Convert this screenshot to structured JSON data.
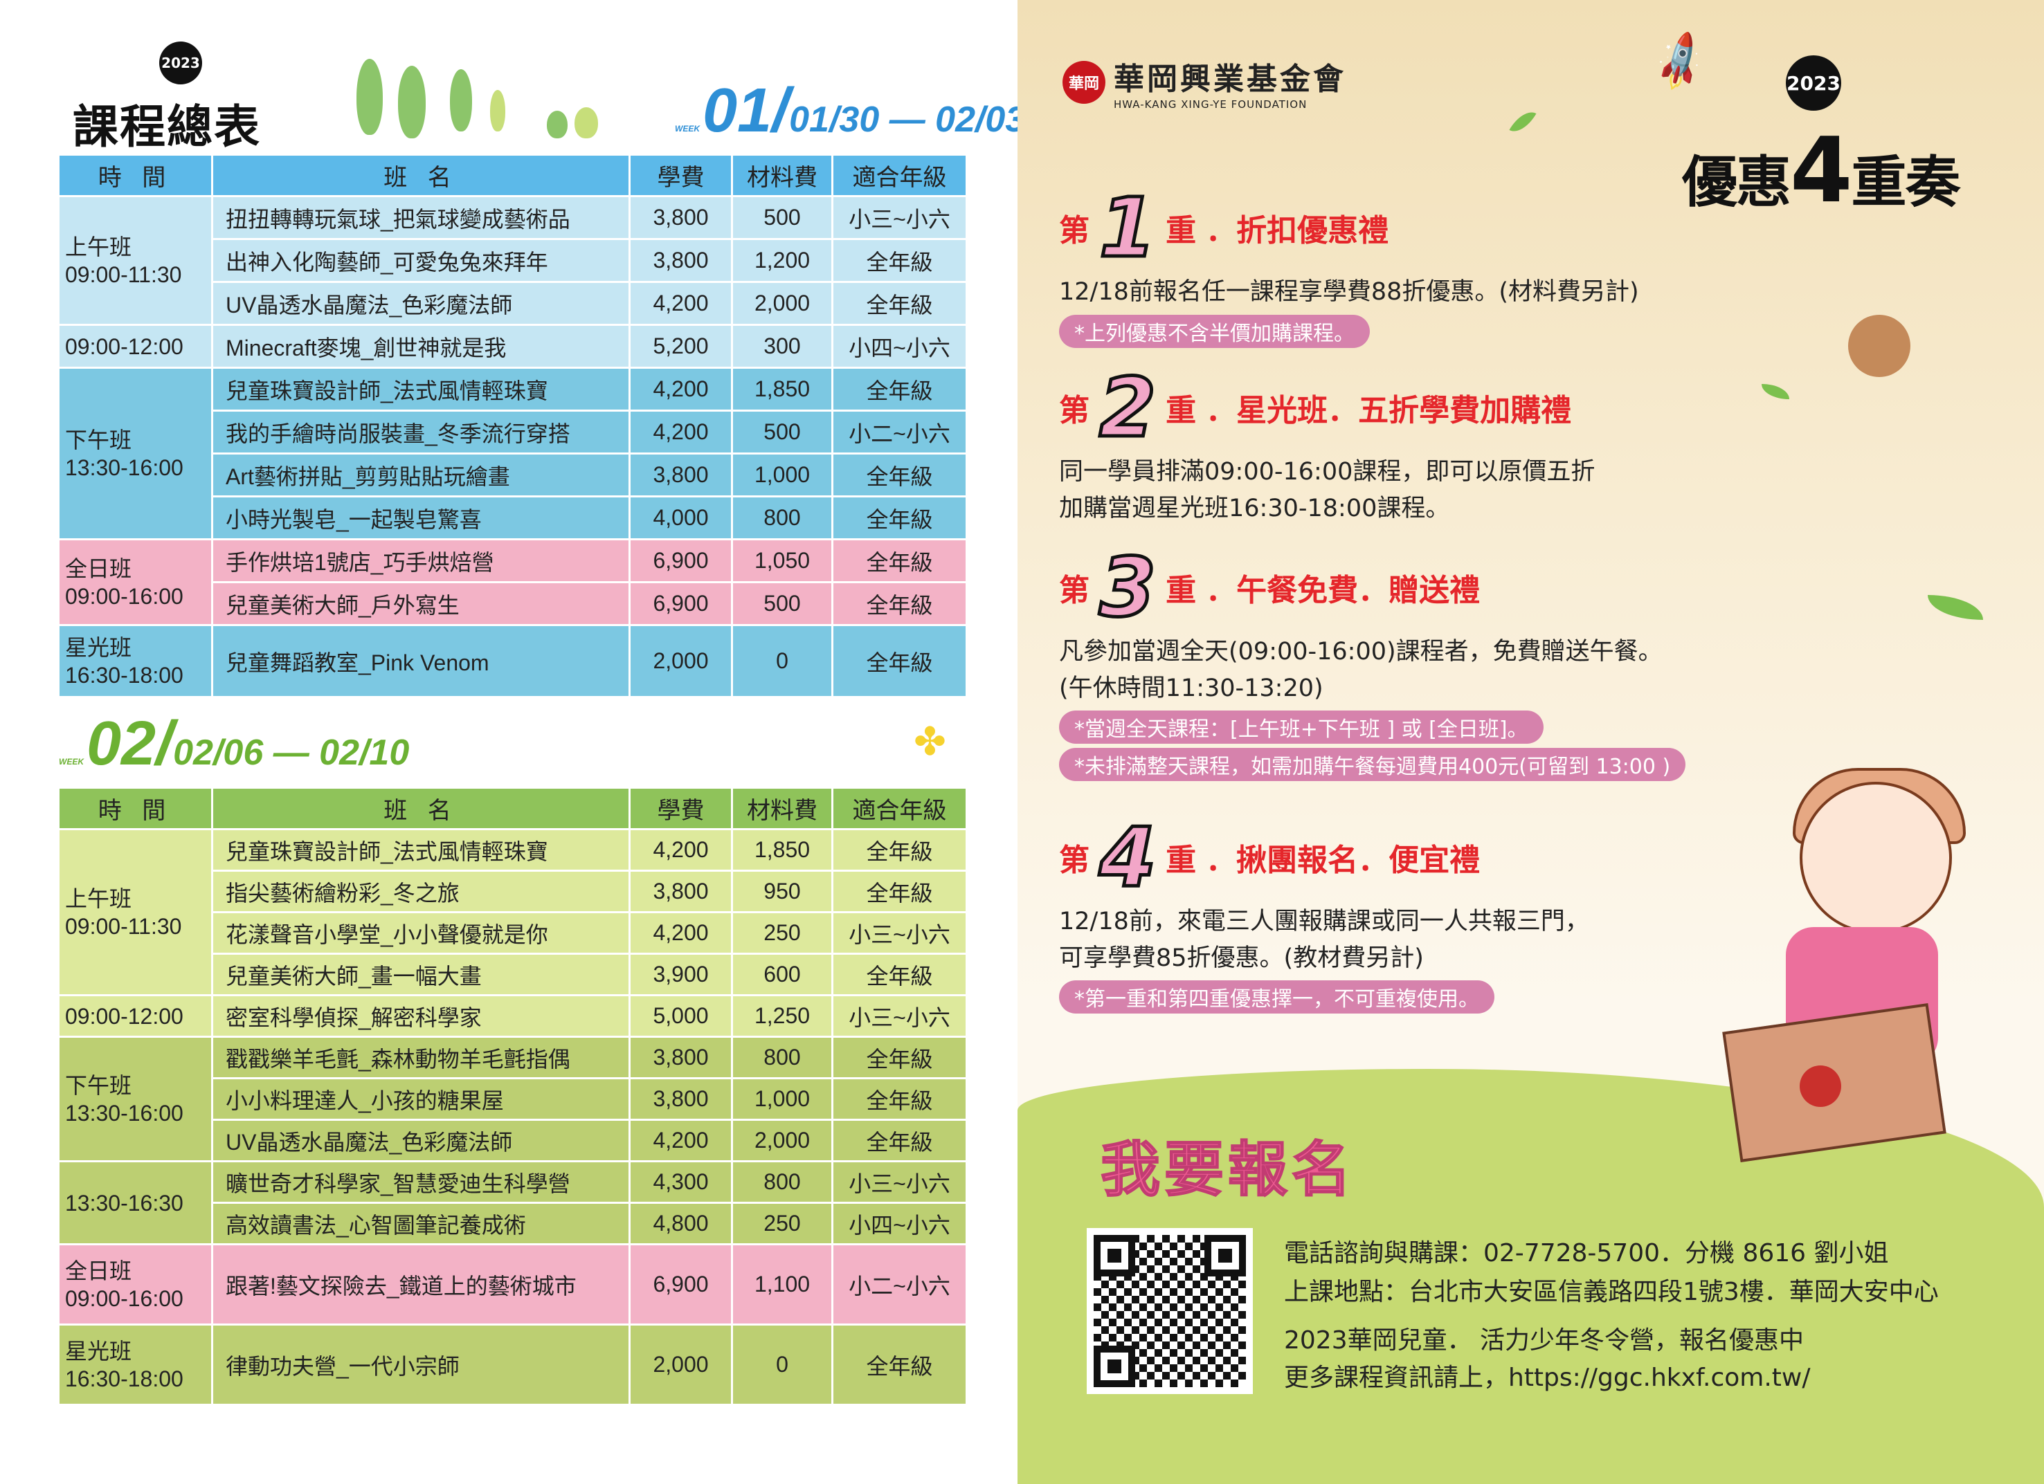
{
  "left": {
    "title": "課程總表",
    "badge": "2023",
    "week1": {
      "label": "01",
      "week_tag": "WEEK",
      "dates": "01/30 — 02/03"
    },
    "week2": {
      "label": "02",
      "week_tag": "WEEK",
      "dates": "02/06 — 02/10"
    },
    "headers": [
      "時 間",
      "班 名",
      "學費",
      "材料費",
      "適合年級"
    ],
    "table1": {
      "groups": [
        {
          "label": "上午班",
          "time": "09:00-11:30",
          "color": "#c5e6f3",
          "rows": [
            [
              "扭扭轉轉玩氣球_把氣球變成藝術品",
              "3,800",
              "500",
              "小三~小六"
            ],
            [
              "出神入化陶藝師_可愛兔兔來拜年",
              "3,800",
              "1,200",
              "全年級"
            ],
            [
              "UV晶透水晶魔法_色彩魔法師",
              "4,200",
              "2,000",
              "全年級"
            ]
          ]
        },
        {
          "label": "",
          "time": "09:00-12:00",
          "color": "#c5e6f3",
          "rows": [
            [
              "Minecraft麥塊_創世神就是我",
              "5,200",
              "300",
              "小四~小六"
            ]
          ]
        },
        {
          "label": "下午班",
          "time": "13:30-16:00",
          "color": "#7cc8e2",
          "rows": [
            [
              "兒童珠寶設計師_法式風情輕珠寶",
              "4,200",
              "1,850",
              "全年級"
            ],
            [
              "我的手繪時尚服裝畫_冬季流行穿搭",
              "4,200",
              "500",
              "小二~小六"
            ],
            [
              "Art藝術拼貼_剪剪貼貼玩繪畫",
              "3,800",
              "1,000",
              "全年級"
            ],
            [
              "小時光製皂_一起製皂驚喜",
              "4,000",
              "800",
              "全年級"
            ]
          ]
        },
        {
          "label": "全日班",
          "time": "09:00-16:00",
          "color": "#f3b2c6",
          "rows": [
            [
              "手作烘培1號店_巧手烘焙營",
              "6,900",
              "1,050",
              "全年級"
            ],
            [
              "兒童美術大師_戶外寫生",
              "6,900",
              "500",
              "全年級"
            ]
          ]
        },
        {
          "label": "星光班",
          "time": "16:30-18:00",
          "color": "#7cc8e2",
          "rows": [
            [
              "兒童舞蹈教室_Pink Venom",
              "2,000",
              "0",
              "全年級"
            ]
          ]
        }
      ]
    },
    "table2": {
      "groups": [
        {
          "label": "上午班",
          "time": "09:00-11:30",
          "color": "#dde99c",
          "rows": [
            [
              "兒童珠寶設計師_法式風情輕珠寶",
              "4,200",
              "1,850",
              "全年級"
            ],
            [
              "指尖藝術繪粉彩_冬之旅",
              "3,800",
              "950",
              "全年級"
            ],
            [
              "花漾聲音小學堂_小小聲優就是你",
              "4,200",
              "250",
              "小三~小六"
            ],
            [
              "兒童美術大師_畫一幅大畫",
              "3,900",
              "600",
              "全年級"
            ]
          ]
        },
        {
          "label": "",
          "time": "09:00-12:00",
          "color": "#dde99c",
          "rows": [
            [
              "密室科學偵探_解密科學家",
              "5,000",
              "1,250",
              "小三~小六"
            ]
          ]
        },
        {
          "label": "下午班",
          "time": "13:30-16:00",
          "color": "#bccf72",
          "rows": [
            [
              "戳戳樂羊毛氈_森林動物羊毛氈指偶",
              "3,800",
              "800",
              "全年級"
            ],
            [
              "小小料理達人_小孩的糖果屋",
              "3,800",
              "1,000",
              "全年級"
            ],
            [
              "UV晶透水晶魔法_色彩魔法師",
              "4,200",
              "2,000",
              "全年級"
            ]
          ]
        },
        {
          "label": "",
          "time": "13:30-16:30",
          "color": "#bccf72",
          "rows": [
            [
              "曠世奇才科學家_智慧愛迪生科學營",
              "4,300",
              "800",
              "小三~小六"
            ],
            [
              "高效讀書法_心智圖筆記養成術",
              "4,800",
              "250",
              "小四~小六"
            ]
          ]
        },
        {
          "label": "全日班",
          "time": "09:00-16:00",
          "color": "#f3b2c6",
          "rows": [
            [
              "跟著!藝文探險去_鐵道上的藝術城市",
              "6,900",
              "1,100",
              "小二~小六"
            ]
          ]
        },
        {
          "label": "星光班",
          "time": "16:30-18:00",
          "color": "#bccf72",
          "rows": [
            [
              "律動功夫營_一代小宗師",
              "2,000",
              "0",
              "全年級"
            ]
          ]
        }
      ]
    },
    "colors": {
      "table1_header": "#5cb9e9",
      "table2_header": "#8fc35a",
      "week1": "#2e8fd6",
      "week2": "#6cb133"
    }
  },
  "right": {
    "logo": {
      "seal": "華岡",
      "name_zh": "華岡興業基金會",
      "name_en": "HWA-KANG XING-YE FOUNDATION"
    },
    "badge": "2023",
    "title_a": "優惠",
    "title_num": "4",
    "title_b": "重奏",
    "offers": [
      {
        "prefix": "第",
        "num": "1",
        "suffix": "重",
        "title": "．折扣優惠禮",
        "lines": [
          "12/18前報名任一課程享學費88折優惠。(材料費另計)"
        ],
        "notes": [
          "*上列優惠不含半價加購課程。"
        ]
      },
      {
        "prefix": "第",
        "num": "2",
        "suffix": "重",
        "title": "．星光班．五折學費加購禮",
        "lines": [
          "同一學員排滿09:00-16:00課程，即可以原價五折",
          "加購當週星光班16:30-18:00課程。"
        ],
        "notes": []
      },
      {
        "prefix": "第",
        "num": "3",
        "suffix": "重",
        "title": "．午餐免費．贈送禮",
        "lines": [
          "凡參加當週全天(09:00-16:00)課程者，免費贈送午餐。",
          "(午休時間11:30-13:20)"
        ],
        "notes": [
          "*當週全天課程：[上午班+下午班 ] 或 [全日班]。",
          "*未排滿整天課程，如需加購午餐每週費用400元(可留到 13:00 )"
        ]
      },
      {
        "prefix": "第",
        "num": "4",
        "suffix": "重",
        "title": "．揪團報名．便宜禮",
        "lines": [
          "12/18前，來電三人團報購課或同一人共報三門，",
          "可享學費85折優惠。(教材費另計)"
        ],
        "notes": [
          "*第一重和第四重優惠擇一，不可重複使用。"
        ]
      }
    ],
    "signup": "我要報名",
    "contact": {
      "phone": "電話諮詢與購課：02-7728-5700．分機 8616 劉小姐",
      "address": "上課地點：台北市大安區信義路四段1號3樓．華岡大安中心",
      "promo": "2023華岡兒童． 活力少年冬令營，報名優惠中",
      "website": "更多課程資訊請上，https://ggc.hkxf.com.tw/"
    },
    "colors": {
      "offer_title": "#e5262b",
      "number": "#f2a6c8",
      "note_pill": "#d682ac",
      "signup": "#ee5c92",
      "grass": "#c6da72"
    }
  }
}
